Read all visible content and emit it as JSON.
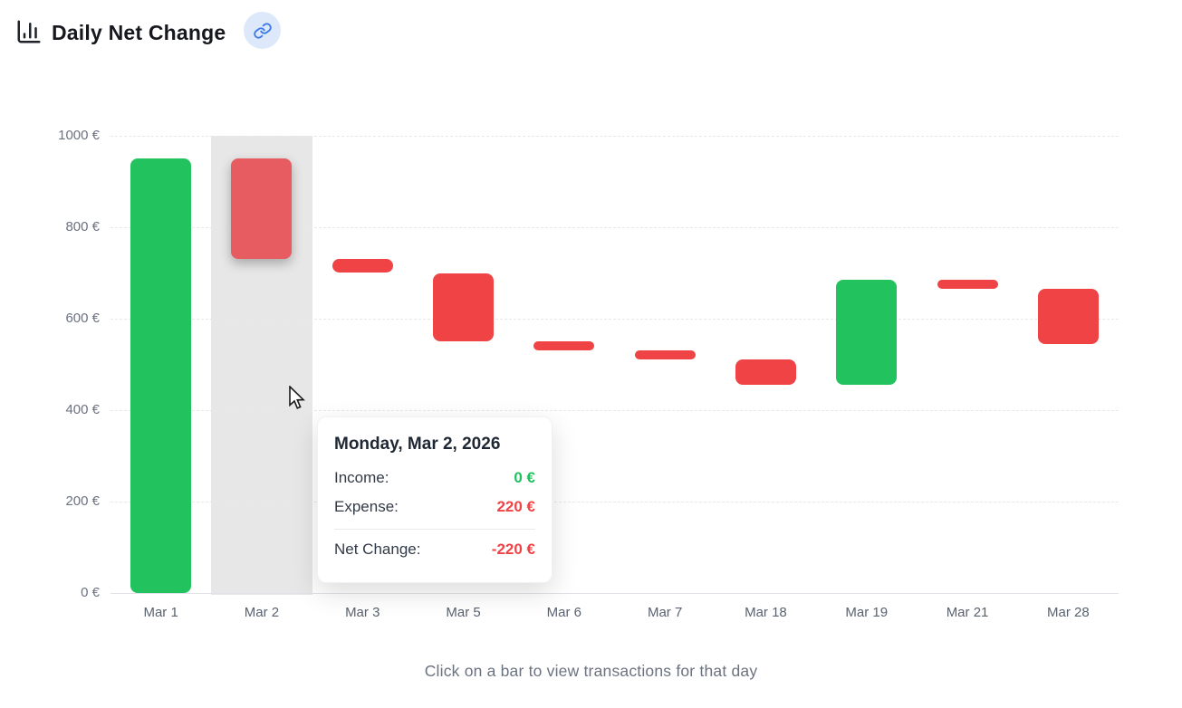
{
  "header": {
    "title": "Daily Net Change",
    "chart_icon": "bar-chart-icon",
    "link_button": {
      "icon": "link-icon"
    }
  },
  "chart_data": {
    "type": "bar",
    "subtype": "waterfall",
    "title": "Daily Net Change",
    "unit": "€",
    "ylim": [
      0,
      1000
    ],
    "grid": true,
    "legend": "none",
    "yticks": [
      {
        "value": 0,
        "label": "0 €"
      },
      {
        "value": 200,
        "label": "200 €"
      },
      {
        "value": 400,
        "label": "400 €"
      },
      {
        "value": 600,
        "label": "600 €"
      },
      {
        "value": 800,
        "label": "800 €"
      },
      {
        "value": 1000,
        "label": "1000 €"
      }
    ],
    "categories": [
      "Mar 1",
      "Mar 2",
      "Mar 3",
      "Mar 5",
      "Mar 6",
      "Mar 7",
      "Mar 18",
      "Mar 19",
      "Mar 21",
      "Mar 28"
    ],
    "bars": [
      {
        "category": "Mar 1",
        "start": 0,
        "end": 950,
        "net": 950,
        "kind": "income",
        "highlighted": false
      },
      {
        "category": "Mar 2",
        "start": 950,
        "end": 730,
        "net": -220,
        "kind": "expense",
        "highlighted": true
      },
      {
        "category": "Mar 3",
        "start": 730,
        "end": 700,
        "net": -30,
        "kind": "expense",
        "highlighted": false
      },
      {
        "category": "Mar 5",
        "start": 700,
        "end": 550,
        "net": -150,
        "kind": "expense",
        "highlighted": false
      },
      {
        "category": "Mar 6",
        "start": 550,
        "end": 530,
        "net": -20,
        "kind": "expense",
        "highlighted": false
      },
      {
        "category": "Mar 7",
        "start": 530,
        "end": 510,
        "net": -20,
        "kind": "expense",
        "highlighted": false
      },
      {
        "category": "Mar 18",
        "start": 510,
        "end": 455,
        "net": -55,
        "kind": "expense",
        "highlighted": false
      },
      {
        "category": "Mar 19",
        "start": 455,
        "end": 685,
        "net": 230,
        "kind": "income",
        "highlighted": false
      },
      {
        "category": "Mar 21",
        "start": 685,
        "end": 665,
        "net": -20,
        "kind": "expense",
        "highlighted": false
      },
      {
        "category": "Mar 28",
        "start": 665,
        "end": 545,
        "net": -120,
        "kind": "expense",
        "highlighted": false
      }
    ]
  },
  "tooltip": {
    "title": "Monday, Mar 2, 2026",
    "income_label": "Income:",
    "income_value": "0 €",
    "expense_label": "Expense:",
    "expense_value": "220 €",
    "net_label": "Net Change:",
    "net_value": "-220 €"
  },
  "footer": {
    "hint": "Click on a bar to view transactions for that day"
  },
  "colors": {
    "income_green": "#22c25e",
    "expense_red": "#ef4345",
    "highlighted_bar_red": "#e65c60",
    "highlight_band": "#e7e7e7",
    "tooltip_income_green": "#1fc15f",
    "link_button_bg": "#dde9fb",
    "link_icon_blue": "#3a78e7"
  }
}
